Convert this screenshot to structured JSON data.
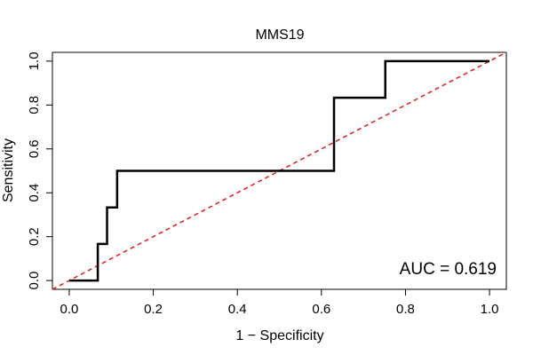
{
  "chart_data": {
    "type": "line",
    "title": "MMS19",
    "xlabel": "1 − Specificity",
    "ylabel": "Sensitivity",
    "xlim": [
      -0.04,
      1.04
    ],
    "ylim": [
      -0.04,
      1.04
    ],
    "x_ticks": [
      0.0,
      0.2,
      0.4,
      0.6,
      0.8,
      1.0
    ],
    "x_tick_labels": [
      "0.0",
      "0.2",
      "0.4",
      "0.6",
      "0.8",
      "1.0"
    ],
    "y_ticks": [
      0.0,
      0.2,
      0.4,
      0.6,
      0.8,
      1.0
    ],
    "y_tick_labels": [
      "0.0",
      "0.2",
      "0.4",
      "0.6",
      "0.8",
      "1.0"
    ],
    "annotation": "AUC = 0.619",
    "series": [
      {
        "name": "ROC curve",
        "color": "#000000",
        "style": "solid",
        "x": [
          0.0,
          0.068,
          0.068,
          0.09,
          0.09,
          0.114,
          0.114,
          0.63,
          0.63,
          0.752,
          0.752,
          1.0
        ],
        "y": [
          0.0,
          0.0,
          0.167,
          0.167,
          0.333,
          0.333,
          0.5,
          0.5,
          0.833,
          0.833,
          1.0,
          1.0
        ]
      },
      {
        "name": "Reference diagonal",
        "color": "#e31a1c",
        "style": "dashed",
        "x": [
          -0.04,
          1.04
        ],
        "y": [
          -0.04,
          1.04
        ]
      }
    ]
  }
}
